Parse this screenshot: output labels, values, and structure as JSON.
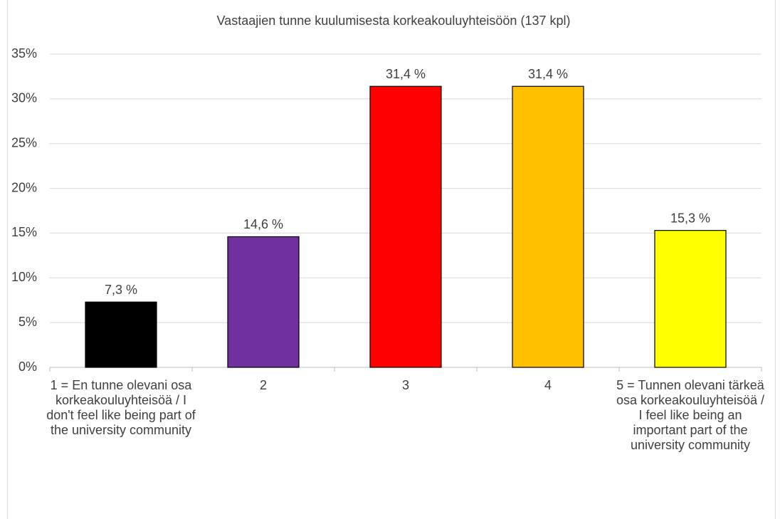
{
  "chart_data": {
    "type": "bar",
    "title": "Vastaajien tunne kuulumisesta korkeakouluyhteisöön (137 kpl)",
    "categories": [
      "1 = En tunne olevani osa korkeakouluyhteisöä / I don't feel like being part of the university community",
      "2",
      "3",
      "4",
      "5 = Tunnen olevani tärkeä osa korkeakouluyhteisöä / I feel like being an important part of the university community"
    ],
    "values": [
      7.3,
      14.6,
      31.4,
      31.4,
      15.3
    ],
    "value_labels": [
      "7,3 %",
      "14,6 %",
      "31,4 %",
      "31,4 %",
      "15,3 %"
    ],
    "colors": [
      "#000000",
      "#7030a0",
      "#ff0000",
      "#ffc000",
      "#ffff00"
    ],
    "ylim": [
      0,
      35
    ],
    "yticks": [
      {
        "value": 0,
        "label": "0%"
      },
      {
        "value": 5,
        "label": "5%"
      },
      {
        "value": 10,
        "label": "10%"
      },
      {
        "value": 15,
        "label": "15%"
      },
      {
        "value": 20,
        "label": "20%"
      },
      {
        "value": 25,
        "label": "25%"
      },
      {
        "value": 30,
        "label": "30%"
      },
      {
        "value": 35,
        "label": "35%"
      }
    ],
    "grid": true
  }
}
